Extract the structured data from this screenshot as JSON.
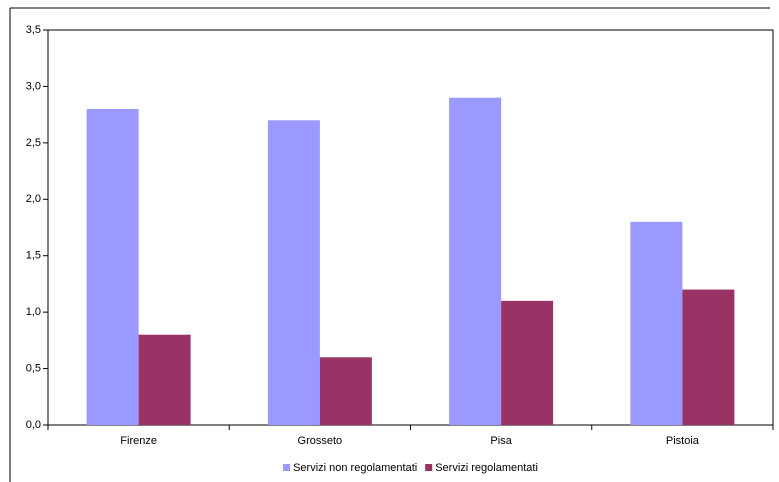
{
  "chart_data": {
    "type": "bar",
    "categories": [
      "Firenze",
      "Grosseto",
      "Pisa",
      "Pistoia"
    ],
    "series": [
      {
        "name": "Servizi non regolamentati",
        "color": "#9999ff",
        "values": [
          2.8,
          2.7,
          2.9,
          1.8
        ]
      },
      {
        "name": "Servizi regolamentati",
        "color": "#993366",
        "values": [
          0.8,
          0.6,
          1.1,
          1.2
        ]
      }
    ],
    "ylim": [
      0,
      3.5
    ],
    "yticks": [
      {
        "value": 0,
        "label": "0,0"
      },
      {
        "value": 0.5,
        "label": "0,5"
      },
      {
        "value": 1,
        "label": "1,0"
      },
      {
        "value": 1.5,
        "label": "1,5"
      },
      {
        "value": 2,
        "label": "2,0"
      },
      {
        "value": 2.5,
        "label": "2,5"
      },
      {
        "value": 3,
        "label": "3,0"
      },
      {
        "value": 3.5,
        "label": "3,5"
      }
    ],
    "grid": false,
    "legend": "bottom"
  }
}
